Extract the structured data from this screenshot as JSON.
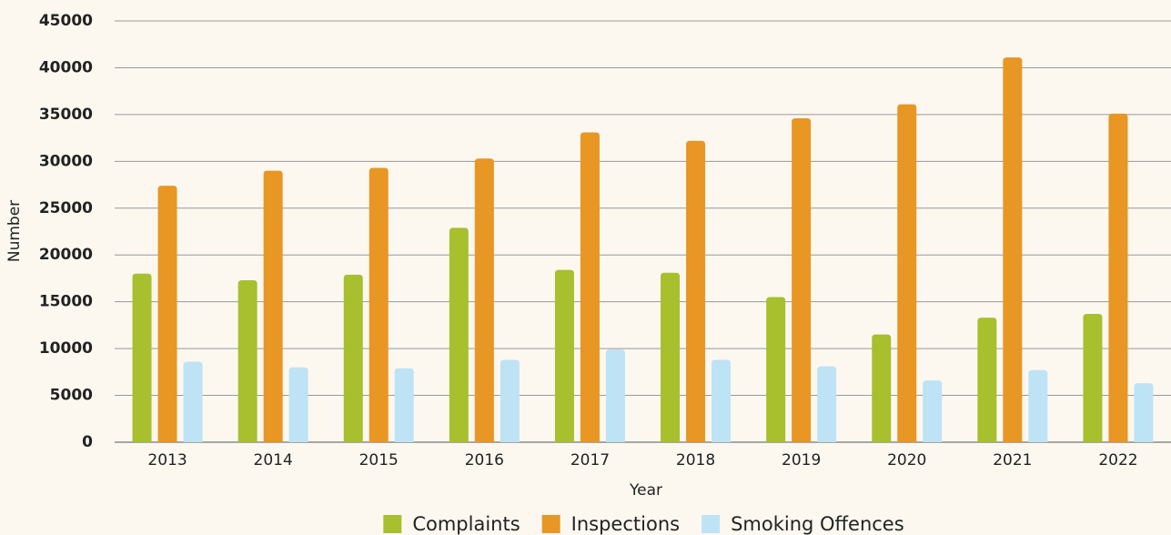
{
  "chart_data": {
    "type": "bar",
    "x_label": "Year",
    "y_label": "Number",
    "categories": [
      "2013",
      "2014",
      "2015",
      "2016",
      "2017",
      "2018",
      "2019",
      "2020",
      "2021",
      "2022"
    ],
    "series": [
      {
        "name": "Complaints",
        "color": "#a8bf2e",
        "values": [
          18000,
          17300,
          17900,
          22900,
          18400,
          18100,
          15500,
          11500,
          13300,
          13700
        ]
      },
      {
        "name": "Inspections",
        "color": "#e89624",
        "values": [
          27400,
          29000,
          29300,
          30300,
          33100,
          32200,
          34600,
          36100,
          41100,
          35100
        ]
      },
      {
        "name": "Smoking Offences",
        "color": "#bde3f5",
        "values": [
          8600,
          8000,
          7900,
          8800,
          9900,
          8800,
          8100,
          6600,
          7700,
          6300
        ]
      }
    ],
    "ylim": [
      0,
      45000
    ],
    "yticks": [
      0,
      5000,
      10000,
      15000,
      20000,
      25000,
      30000,
      35000,
      40000,
      45000
    ],
    "grid": true,
    "legend": "bottom"
  }
}
